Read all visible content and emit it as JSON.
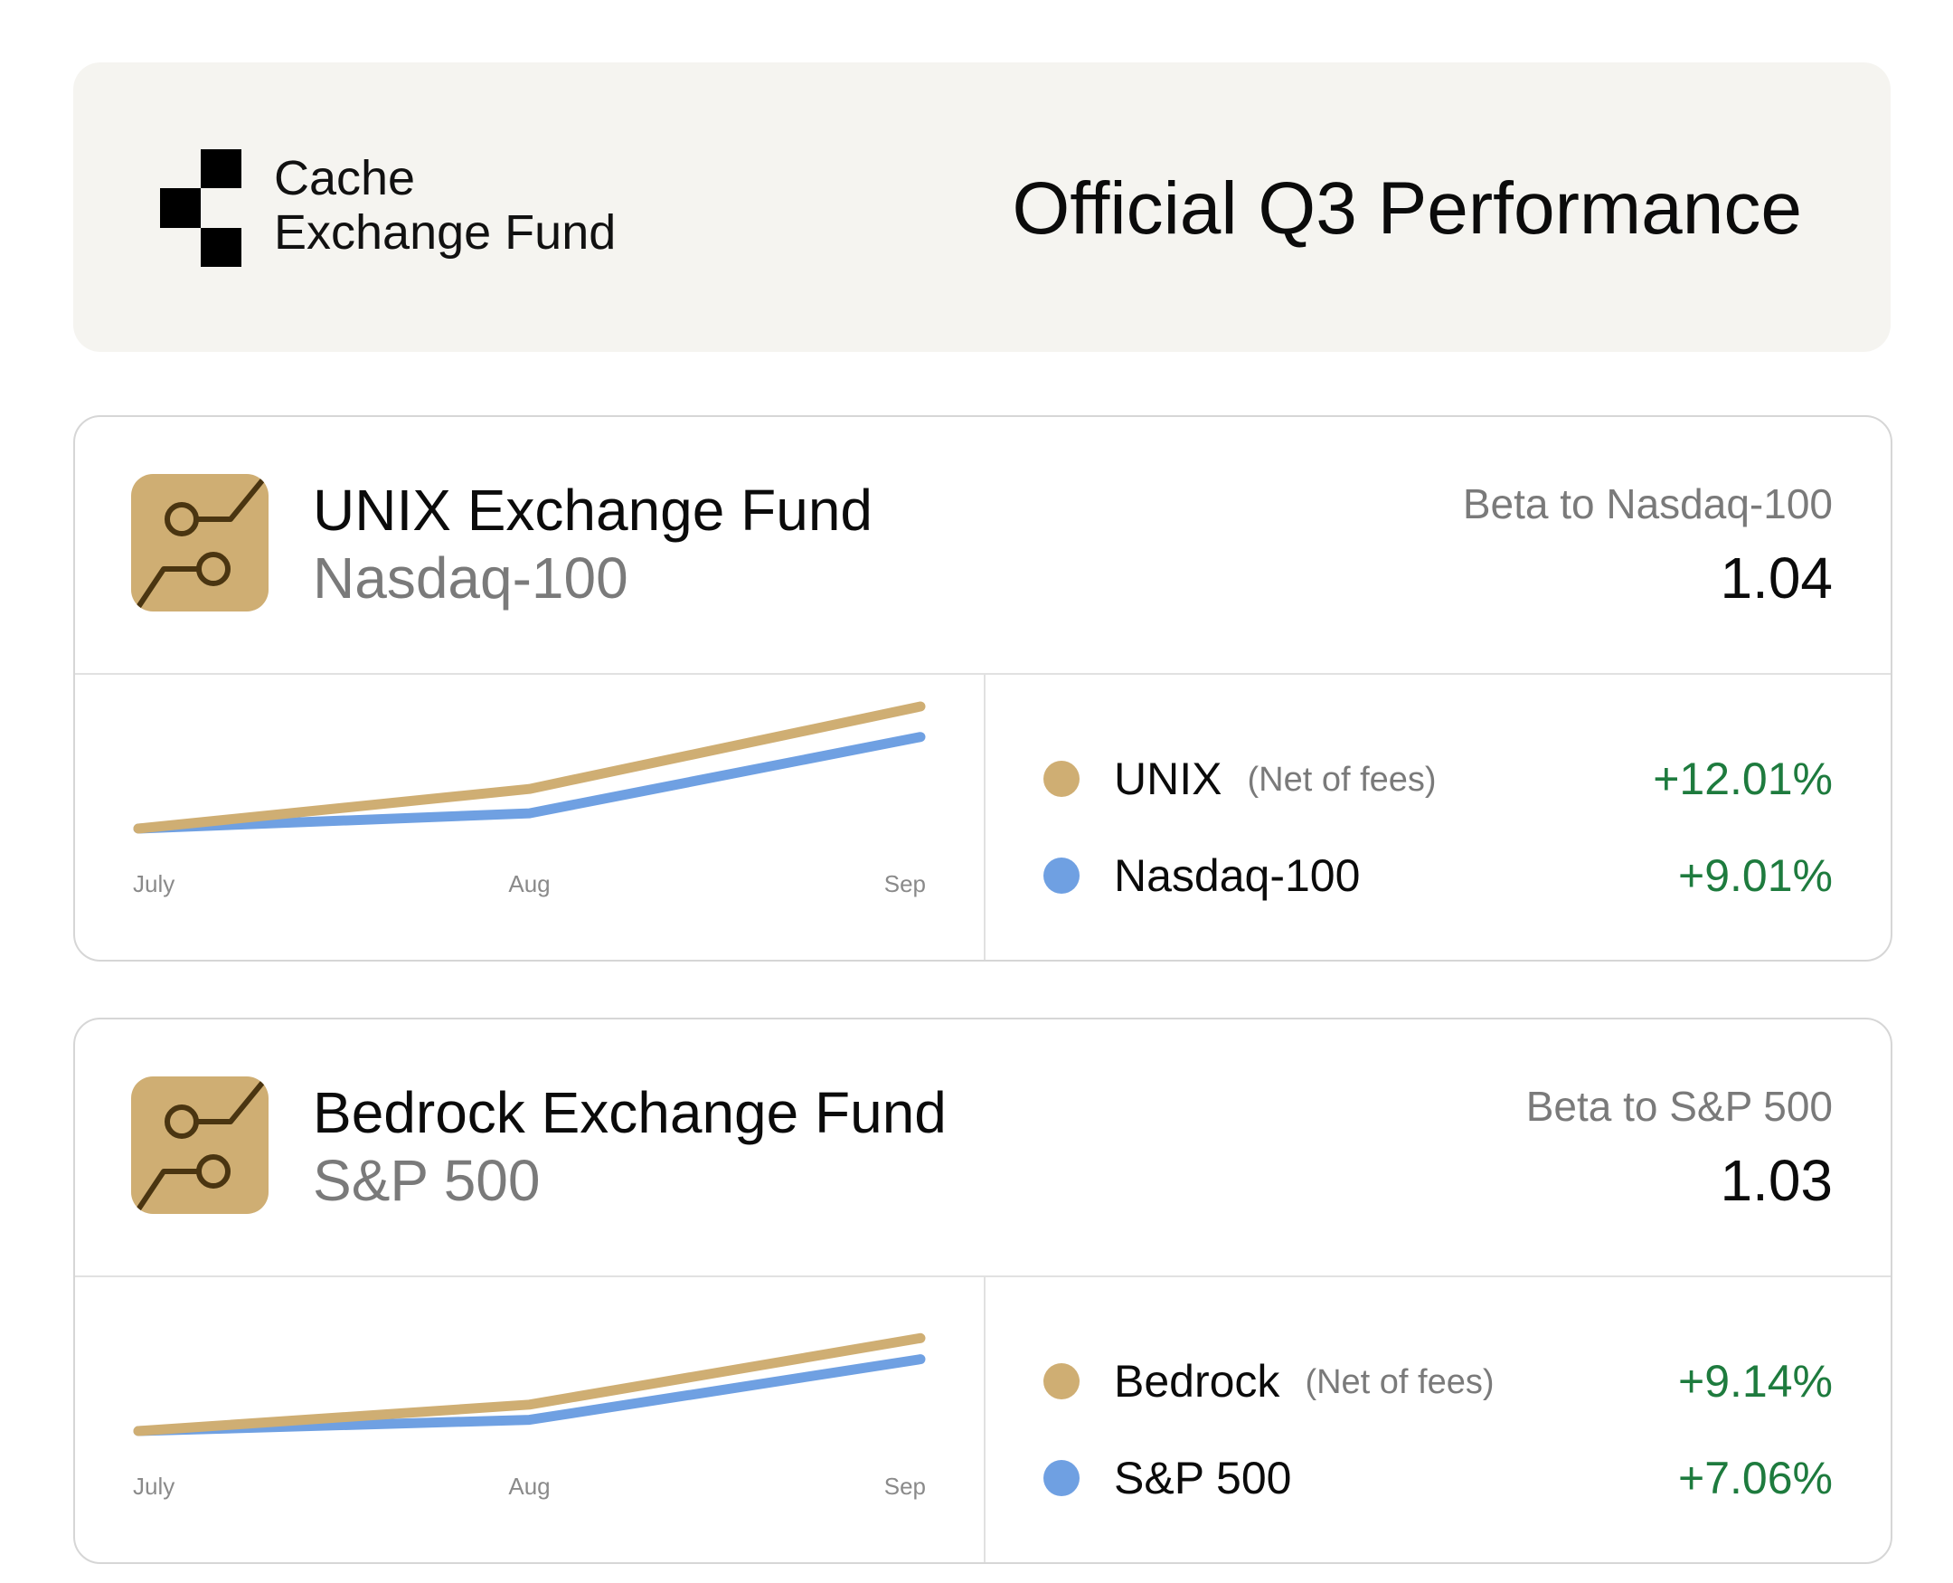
{
  "brand": {
    "name_line1": "Cache",
    "name_line2": "Exchange Fund",
    "logo_icon": "checker-logo-icon"
  },
  "title": "Official Q3 Performance",
  "colors": {
    "fund": "#cfae73",
    "index": "#6fa0e2",
    "positive": "#1e7b3e",
    "muted": "#7a7a7a"
  },
  "funds": [
    {
      "name": "UNIX Exchange Fund",
      "index": "Nasdaq-100",
      "beta_label": "Beta to Nasdaq-100",
      "beta_value": "1.04",
      "icon": "growth-chart-icon",
      "legend": [
        {
          "name": "UNIX",
          "note": "(Net of fees)",
          "value": "+12.01%"
        },
        {
          "name": "Nasdaq-100",
          "note": "",
          "value": "+9.01%"
        }
      ]
    },
    {
      "name": "Bedrock Exchange Fund",
      "index": "S&P 500",
      "beta_label": "Beta to S&P 500",
      "beta_value": "1.03",
      "icon": "growth-chart-icon",
      "legend": [
        {
          "name": "Bedrock",
          "note": "(Net of fees)",
          "value": "+9.14%"
        },
        {
          "name": "S&P 500",
          "note": "",
          "value": "+7.06%"
        }
      ]
    }
  ],
  "chart_data": [
    {
      "type": "line",
      "categories": [
        "July",
        "Aug",
        "Sep"
      ],
      "ylim": [
        0,
        12.01
      ],
      "series": [
        {
          "name": "UNIX",
          "values": [
            0,
            3.9,
            12.01
          ]
        },
        {
          "name": "Nasdaq-100",
          "values": [
            0,
            1.5,
            9.01
          ]
        }
      ]
    },
    {
      "type": "line",
      "categories": [
        "July",
        "Aug",
        "Sep"
      ],
      "ylim": [
        0,
        12.01
      ],
      "series": [
        {
          "name": "Bedrock",
          "values": [
            0,
            2.6,
            9.14
          ]
        },
        {
          "name": "S&P 500",
          "values": [
            0,
            1.1,
            7.06
          ]
        }
      ]
    }
  ]
}
